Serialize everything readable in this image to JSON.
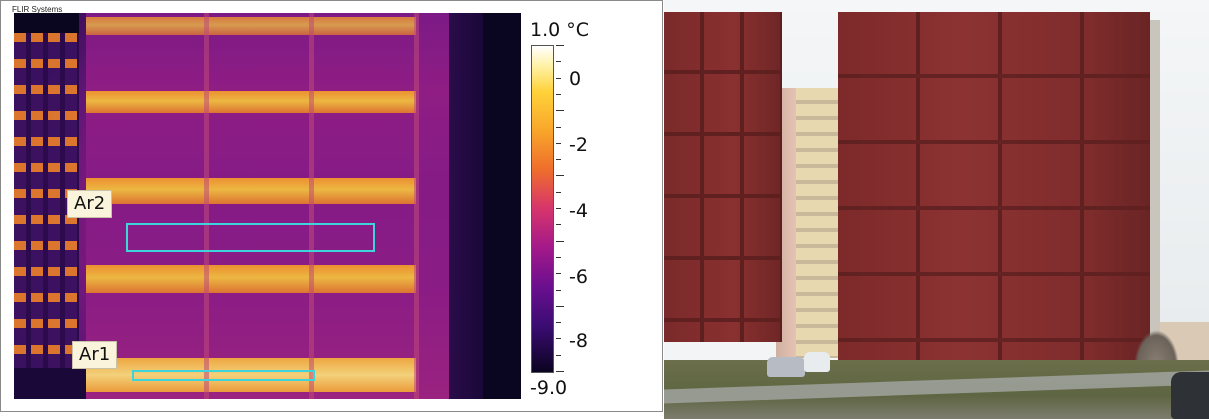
{
  "thermal_panel": {
    "vendor_label": "FLIR Systems",
    "scale": {
      "max_label": "1.0 °C",
      "min_label": "-9.0",
      "tick_labels": [
        "0",
        "-2",
        "-4",
        "-6",
        "-8"
      ]
    },
    "regions": [
      {
        "label": "Ar2"
      },
      {
        "label": "Ar1"
      }
    ],
    "colors": {
      "roi_outline": "#3fd3da",
      "label_background": "#fbf4dc"
    }
  },
  "photo_panel": {
    "subject": "building-facade-photo"
  }
}
